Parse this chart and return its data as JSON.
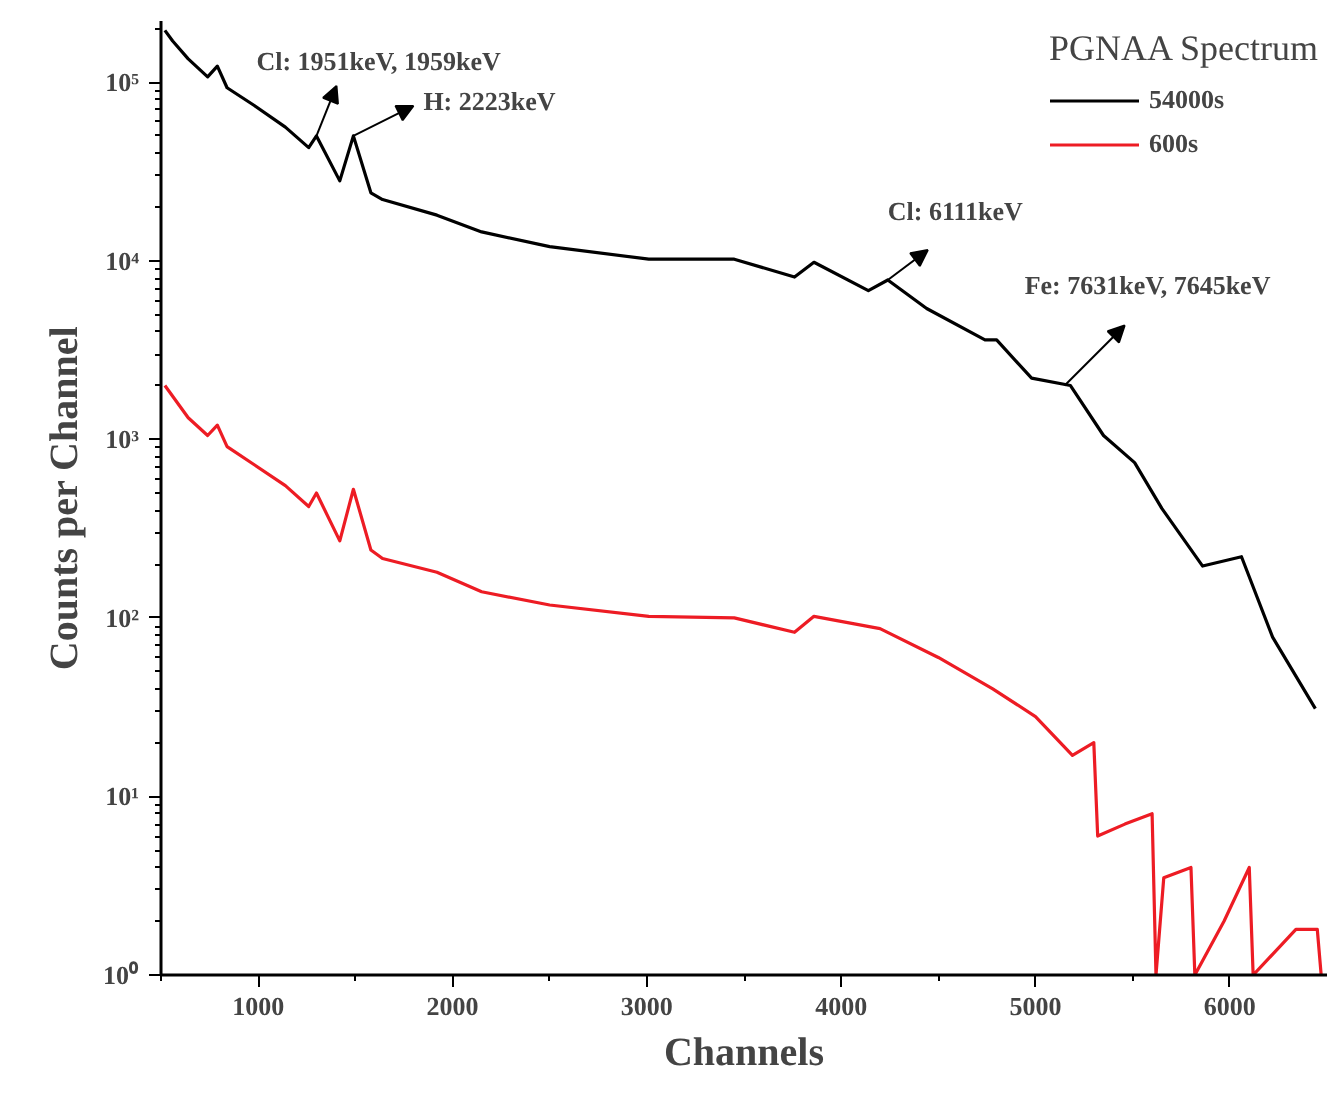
{
  "chart_data": {
    "type": "line",
    "xlabel": "Channels",
    "ylabel": "Counts per Channel",
    "legend_title": "PGNAA Spectrum",
    "legend": "top right",
    "log": "y",
    "grid": false,
    "marker": "none",
    "line_style": "solid",
    "xlim": [
      500,
      6500
    ],
    "ylim": [
      1,
      220000
    ],
    "xticks": [
      {
        "value": 500,
        "label": null
      },
      1000,
      {
        "value": 1500,
        "label": null
      },
      2000,
      {
        "value": 2500,
        "label": null
      },
      3000,
      {
        "value": 3500,
        "label": null
      },
      4000,
      {
        "value": 4500,
        "label": null
      },
      5000,
      {
        "value": 5500,
        "label": null
      },
      6000
    ],
    "yticks": [
      {
        "value": 1,
        "label": "10⁰"
      },
      {
        "value": 10,
        "label": "10¹"
      },
      {
        "value": 100,
        "label": "10²"
      },
      {
        "value": 1000,
        "label": "10³"
      },
      {
        "value": 10000,
        "label": "10⁴"
      },
      {
        "value": 100000,
        "label": "10⁵"
      }
    ],
    "series": [
      {
        "name": "54000s",
        "color": "#000000",
        "x": [
          520,
          560,
          640,
          740,
          790,
          840,
          980,
          1140,
          1260,
          1300,
          1420,
          1490,
          1580,
          1640,
          1920,
          2150,
          2500,
          3010,
          3450,
          3760,
          3860,
          4140,
          4240,
          4440,
          4740,
          4800,
          4980,
          5180,
          5350,
          5510,
          5650,
          5860,
          6060,
          6220,
          6440
        ],
        "values": [
          195000,
          170000,
          135000,
          107000,
          123000,
          93000,
          74000,
          56000,
          43000,
          50000,
          28000,
          50000,
          24000,
          22000,
          18000,
          14500,
          12000,
          10200,
          10200,
          8100,
          9800,
          6800,
          7800,
          5400,
          3600,
          3600,
          2200,
          2000,
          1050,
          740,
          410,
          195,
          220,
          78,
          31
        ]
      },
      {
        "name": "600s",
        "color": "#ed1c24",
        "x": [
          520,
          640,
          740,
          790,
          840,
          980,
          1140,
          1260,
          1300,
          1420,
          1490,
          1580,
          1640,
          1920,
          2150,
          2500,
          3010,
          3450,
          3760,
          3860,
          4200,
          4500,
          4780,
          5000,
          5190,
          5300,
          5320,
          5460,
          5600,
          5620,
          5660,
          5800,
          5820,
          5970,
          6100,
          6120,
          6340,
          6450,
          6470
        ],
        "values": [
          2000,
          1320,
          1050,
          1200,
          910,
          720,
          550,
          420,
          500,
          270,
          525,
          240,
          215,
          180,
          140,
          118,
          102,
          100,
          83,
          102,
          87,
          60,
          40,
          28,
          17,
          20,
          6,
          7,
          8,
          1,
          3.5,
          4,
          1,
          2,
          4,
          1,
          1.8,
          1.8,
          1
        ]
      }
    ],
    "annotations": [
      {
        "text": "Cl: 1951keV, 1959keV",
        "x": 1300,
        "y": 50000
      },
      {
        "text": "H: 2223keV",
        "x": 1490,
        "y": 50000
      },
      {
        "text": "Cl: 6111keV",
        "x": 4240,
        "y": 7800
      },
      {
        "text": "Fe: 7631keV, 7645keV",
        "x": 5150,
        "y": 2000
      }
    ]
  }
}
